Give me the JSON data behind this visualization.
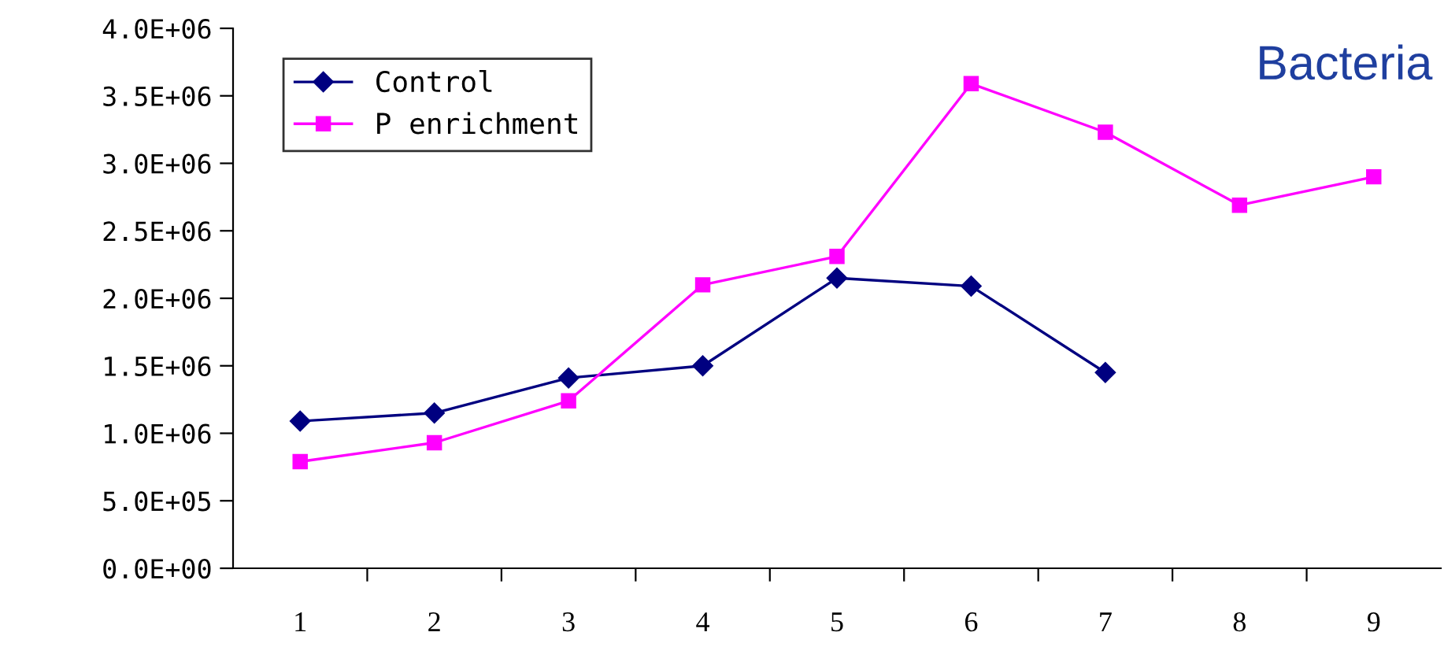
{
  "chart_data": {
    "type": "line",
    "title": "Bacteria",
    "categories": [
      "1",
      "2",
      "3",
      "4",
      "5",
      "6",
      "7",
      "8",
      "9"
    ],
    "series": [
      {
        "name": "Control",
        "color": "#000080",
        "marker": "diamond",
        "values": [
          1090000,
          1150000,
          1410000,
          1500000,
          2150000,
          2090000,
          1450000,
          null,
          null
        ]
      },
      {
        "name": "P enrichment",
        "color": "#ff00ff",
        "marker": "square",
        "values": [
          790000,
          930000,
          1240000,
          2100000,
          2310000,
          3590000,
          3230000,
          2690000,
          2900000
        ]
      }
    ],
    "ylim": [
      0,
      4000000
    ],
    "yticks": [
      {
        "value": 0,
        "label": "0.0E+00"
      },
      {
        "value": 500000,
        "label": "5.0E+05"
      },
      {
        "value": 1000000,
        "label": "1.0E+06"
      },
      {
        "value": 1500000,
        "label": "1.5E+06"
      },
      {
        "value": 2000000,
        "label": "2.0E+06"
      },
      {
        "value": 2500000,
        "label": "2.5E+06"
      },
      {
        "value": 3000000,
        "label": "3.0E+06"
      },
      {
        "value": 3500000,
        "label": "3.5E+06"
      },
      {
        "value": 4000000,
        "label": "4.0E+06"
      }
    ],
    "grid": false,
    "legend": "top left",
    "line_style": "solid"
  }
}
